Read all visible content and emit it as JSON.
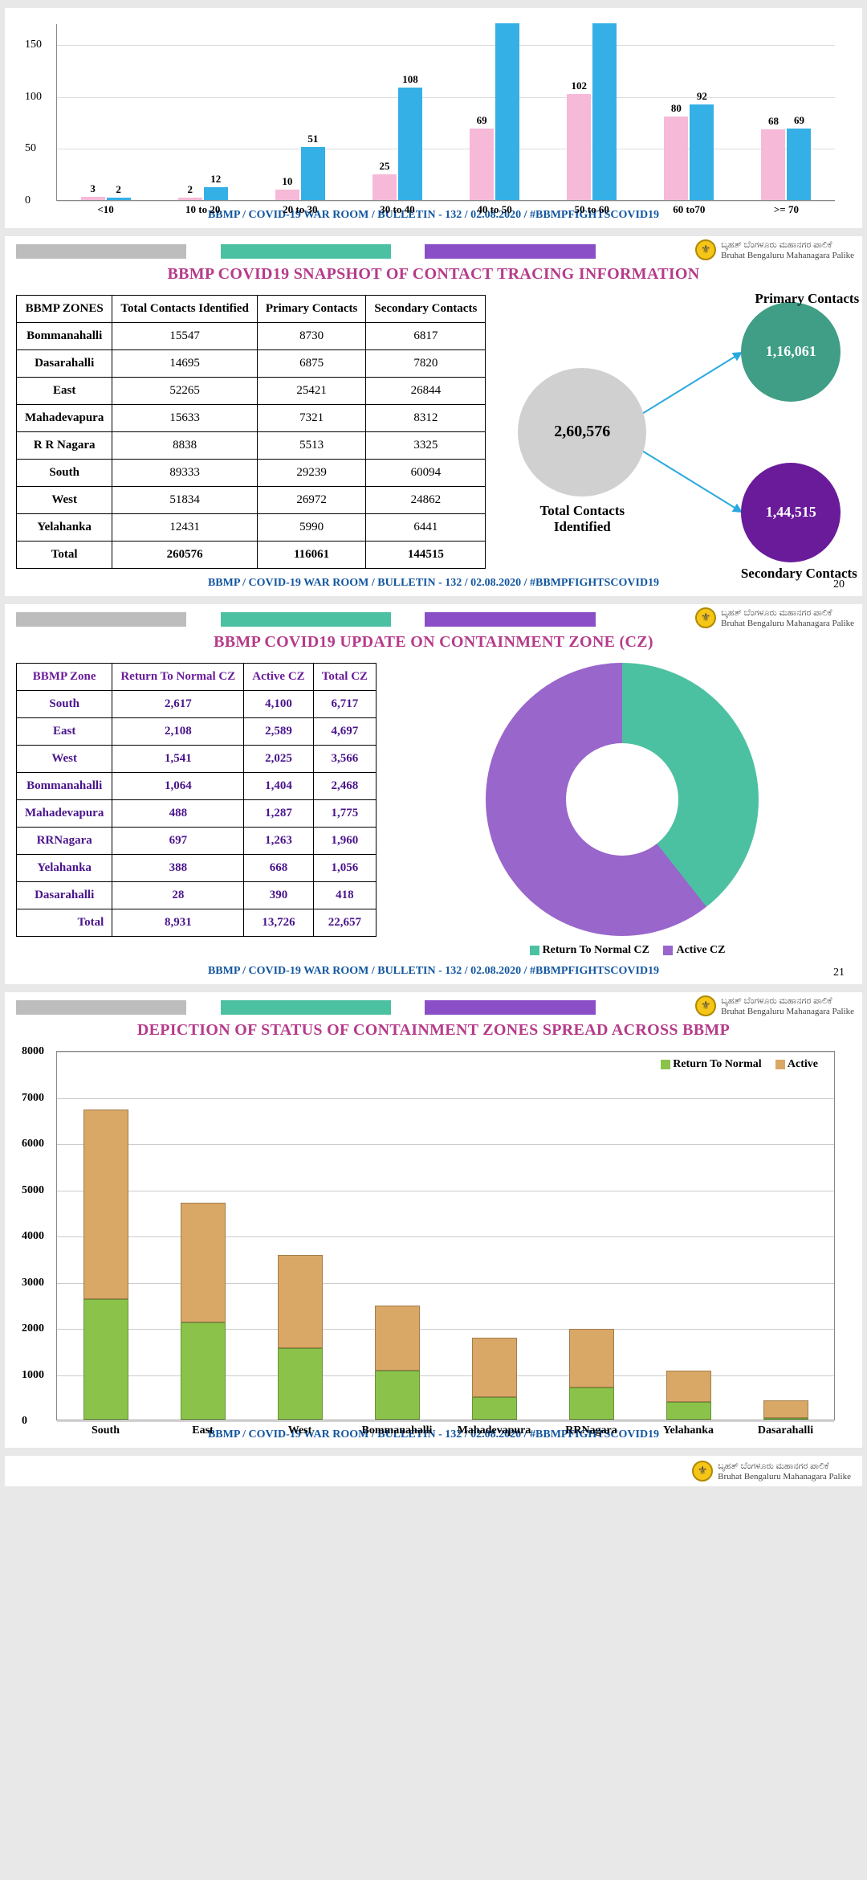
{
  "footer": "BBMP / COVID-19 WAR ROOM / BULLETIN - 132 / 02.08.2020 / #BBMPFIGHTSCOVID19",
  "org_line1": "ಬೃಹತ್ ಬೆಂಗಳೂರು ಮಹಾನಗರ ಪಾಲಿಕೆ",
  "org_line2": "Bruhat Bengaluru Mahanagara Palike",
  "logo_glyph": "⚜",
  "palette": {
    "header_gray": "#bdbdbd",
    "header_green": "#4cc1a1",
    "header_purple": "#8a4fc7"
  },
  "p1": {
    "type": "grouped-bar-partial",
    "ymax": 170,
    "yticks": [
      0,
      50,
      100,
      150
    ],
    "series_colors": [
      "#f7b9d8",
      "#34b0e6"
    ],
    "groups": [
      {
        "label": "<10",
        "vals": [
          3,
          2
        ]
      },
      {
        "label": "10 to 20",
        "vals": [
          2,
          12
        ]
      },
      {
        "label": "20 to 30",
        "vals": [
          10,
          51
        ]
      },
      {
        "label": "30 to 40",
        "vals": [
          25,
          108
        ]
      },
      {
        "label": "40 to 50",
        "vals": [
          69,
          170
        ]
      },
      {
        "label": "50 to 60",
        "vals": [
          102,
          170
        ]
      },
      {
        "label": "60 to70",
        "vals": [
          80,
          92
        ]
      },
      {
        "label": ">= 70",
        "vals": [
          68,
          69
        ]
      }
    ],
    "hide_val_if_at_max": true
  },
  "p2": {
    "title": "BBMP COVID19 SNAPSHOT OF CONTACT TRACING INFORMATION",
    "title_color": "#b63b8a",
    "page_num": "20",
    "table": {
      "headers": [
        "BBMP ZONES",
        "Total Contacts Identified",
        "Primary Contacts",
        "Secondary Contacts"
      ],
      "rows": [
        [
          "Bommanahalli",
          "15547",
          "8730",
          "6817"
        ],
        [
          "Dasarahalli",
          "14695",
          "6875",
          "7820"
        ],
        [
          "East",
          "52265",
          "25421",
          "26844"
        ],
        [
          "Mahadevapura",
          "15633",
          "7321",
          "8312"
        ],
        [
          "R R Nagara",
          "8838",
          "5513",
          "3325"
        ],
        [
          "South",
          "89333",
          "29239",
          "60094"
        ],
        [
          "West",
          "51834",
          "26972",
          "24862"
        ],
        [
          "Yelahanka",
          "12431",
          "5990",
          "6441"
        ],
        [
          "Total",
          "260576",
          "116061",
          "144515"
        ]
      ]
    },
    "diagram": {
      "total_value": "2,60,576",
      "total_label": "Total Contacts Identified",
      "total_color": "#d0d0d0",
      "primary_label": "Primary Contacts",
      "primary_value": "1,16,061",
      "primary_color": "#3f9e85",
      "secondary_label": "Secondary Contacts",
      "secondary_value": "1,44,515",
      "secondary_color": "#6a1b9a",
      "arrow_color": "#2aa9e0"
    }
  },
  "p3": {
    "title": "BBMP COVID19 UPDATE ON CONTAINMENT ZONE (CZ)",
    "title_color": "#b63b8a",
    "page_num": "21",
    "table": {
      "headers": [
        "BBMP Zone",
        "Return To Normal CZ",
        "Active CZ",
        "Total CZ"
      ],
      "header_color": "#6a1b9a",
      "rows": [
        [
          "South",
          "2,617",
          "4,100",
          "6,717"
        ],
        [
          "East",
          "2,108",
          "2,589",
          "4,697"
        ],
        [
          "West",
          "1,541",
          "2,025",
          "3,566"
        ],
        [
          "Bommanahalli",
          "1,064",
          "1,404",
          "2,468"
        ],
        [
          "Mahadevapura",
          "488",
          "1,287",
          "1,775"
        ],
        [
          "RRNagara",
          "697",
          "1,263",
          "1,960"
        ],
        [
          "Yelahanka",
          "388",
          "668",
          "1,056"
        ],
        [
          "Dasarahalli",
          "28",
          "390",
          "418"
        ],
        [
          "Total",
          "8,931",
          "13,726",
          "22,657"
        ]
      ]
    },
    "donut": {
      "return_pct": 39.4,
      "active_pct": 60.6,
      "return_color": "#4cc1a1",
      "active_color": "#9966cc",
      "legend_return": "Return To Normal CZ",
      "legend_active": "Active CZ"
    }
  },
  "p4": {
    "title": "DEPICTION OF STATUS OF CONTAINMENT ZONES SPREAD ACROSS BBMP",
    "title_color": "#b63b8a",
    "ymax": 8000,
    "yticks": [
      0,
      1000,
      2000,
      3000,
      4000,
      5000,
      6000,
      7000,
      8000
    ],
    "series": [
      {
        "name": "Return To Normal",
        "color": "#8bc34a"
      },
      {
        "name": "Active",
        "color": "#d9a766"
      }
    ],
    "legend_return": "Return To Normal",
    "legend_active": "Active",
    "bars": [
      {
        "label": "South",
        "return": 2617,
        "active": 4100
      },
      {
        "label": "East",
        "return": 2108,
        "active": 2589
      },
      {
        "label": "West",
        "return": 1541,
        "active": 2025
      },
      {
        "label": "Bommanahalli",
        "return": 1064,
        "active": 1404
      },
      {
        "label": "Mahadevapura",
        "return": 488,
        "active": 1287
      },
      {
        "label": "RRNagara",
        "return": 697,
        "active": 1263
      },
      {
        "label": "Yelahanka",
        "return": 388,
        "active": 668
      },
      {
        "label": "Dasarahalli",
        "return": 28,
        "active": 390
      }
    ]
  }
}
